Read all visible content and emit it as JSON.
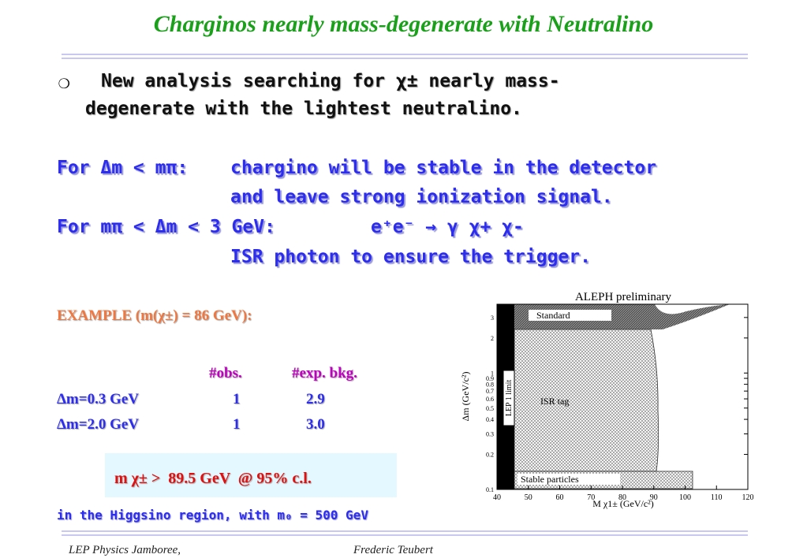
{
  "title": "Charginos nearly mass-degenerate with Neutralino",
  "bullet": [
    "New analysis searching for χ± nearly mass-",
    "degenerate with the lightest neutralino."
  ],
  "conditions": [
    {
      "label": "For Δm < mπ:",
      "lines": [
        "chargino will be stable in the detector",
        "and leave strong ionization signal."
      ]
    },
    {
      "label": "For mπ < Δm < 3 GeV:",
      "lines": [
        "e⁺e⁻ → γ χ+ χ-",
        "ISR photon to ensure the trigger."
      ]
    }
  ],
  "example": "EXAMPLE (m(χ±) = 86 GeV):",
  "table": {
    "header": [
      "#obs.",
      "#exp. bkg."
    ],
    "rows": [
      [
        "Δm=0.3 GeV",
        "1",
        "2.9"
      ],
      [
        "Δm=2.0 GeV",
        "1",
        "3.0"
      ]
    ]
  },
  "limit": "m χ± >  89.5 GeV  @ 95% c.l.",
  "note": "in the Higgsino region, with m₀ = 500 GeV",
  "figure": {
    "title": "ALEPH preliminary",
    "xlabel": "M χ1± (GeV/c²)",
    "ylabel": "Δm (GeV/c²)",
    "xlim": [
      40,
      120
    ],
    "ylim": [
      0.1,
      3.9
    ],
    "log_y": true,
    "xticks": [
      40,
      50,
      60,
      70,
      80,
      90,
      100,
      110,
      120
    ],
    "yticks": [
      0.1,
      0.2,
      0.3,
      0.4,
      0.5,
      0.6,
      0.7,
      0.8,
      0.9,
      1,
      2,
      3
    ],
    "regions": [
      "Standard",
      "ISR tag",
      "Stable particles"
    ],
    "band": "LEP 1 limit"
  },
  "footer": [
    "LEP Physics Jamboree,",
    "Frederic Teubert"
  ]
}
